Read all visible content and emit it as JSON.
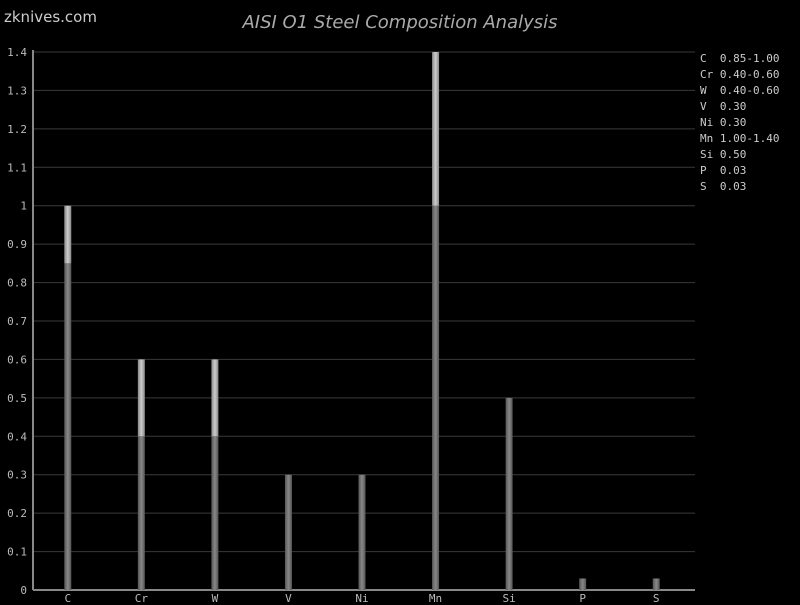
{
  "brand": "zknives.com",
  "chart_data": {
    "type": "bar",
    "title": "AISI O1 Steel Composition Analysis",
    "categories": [
      "C",
      "Cr",
      "W",
      "V",
      "Ni",
      "Mn",
      "Si",
      "P",
      "S"
    ],
    "ranges": [
      [
        0.85,
        1.0
      ],
      [
        0.4,
        0.6
      ],
      [
        0.4,
        0.6
      ],
      [
        0.3,
        0.3
      ],
      [
        0.3,
        0.3
      ],
      [
        1.0,
        1.4
      ],
      [
        0.5,
        0.5
      ],
      [
        0.03,
        0.03
      ],
      [
        0.03,
        0.03
      ]
    ],
    "ylim": [
      0,
      1.4
    ],
    "yticks": [
      "0",
      "0.1",
      "0.2",
      "0.3",
      "0.4",
      "0.5",
      "0.6",
      "0.7",
      "0.8",
      "0.9",
      "1",
      "1.1",
      "1.2",
      "1.3",
      "1.4"
    ],
    "grid": true,
    "legend_position": "right",
    "legend": [
      "C  0.85-1.00",
      "Cr 0.40-0.60",
      "W  0.40-0.60",
      "V  0.30",
      "Ni 0.30",
      "Mn 1.00-1.40",
      "Si 0.50",
      "P  0.03",
      "S  0.03"
    ],
    "colors": {
      "background": "#000000",
      "min_bar": "#777777",
      "range_bar": "#aaaaaa",
      "grid": "#3a3a3a"
    }
  }
}
